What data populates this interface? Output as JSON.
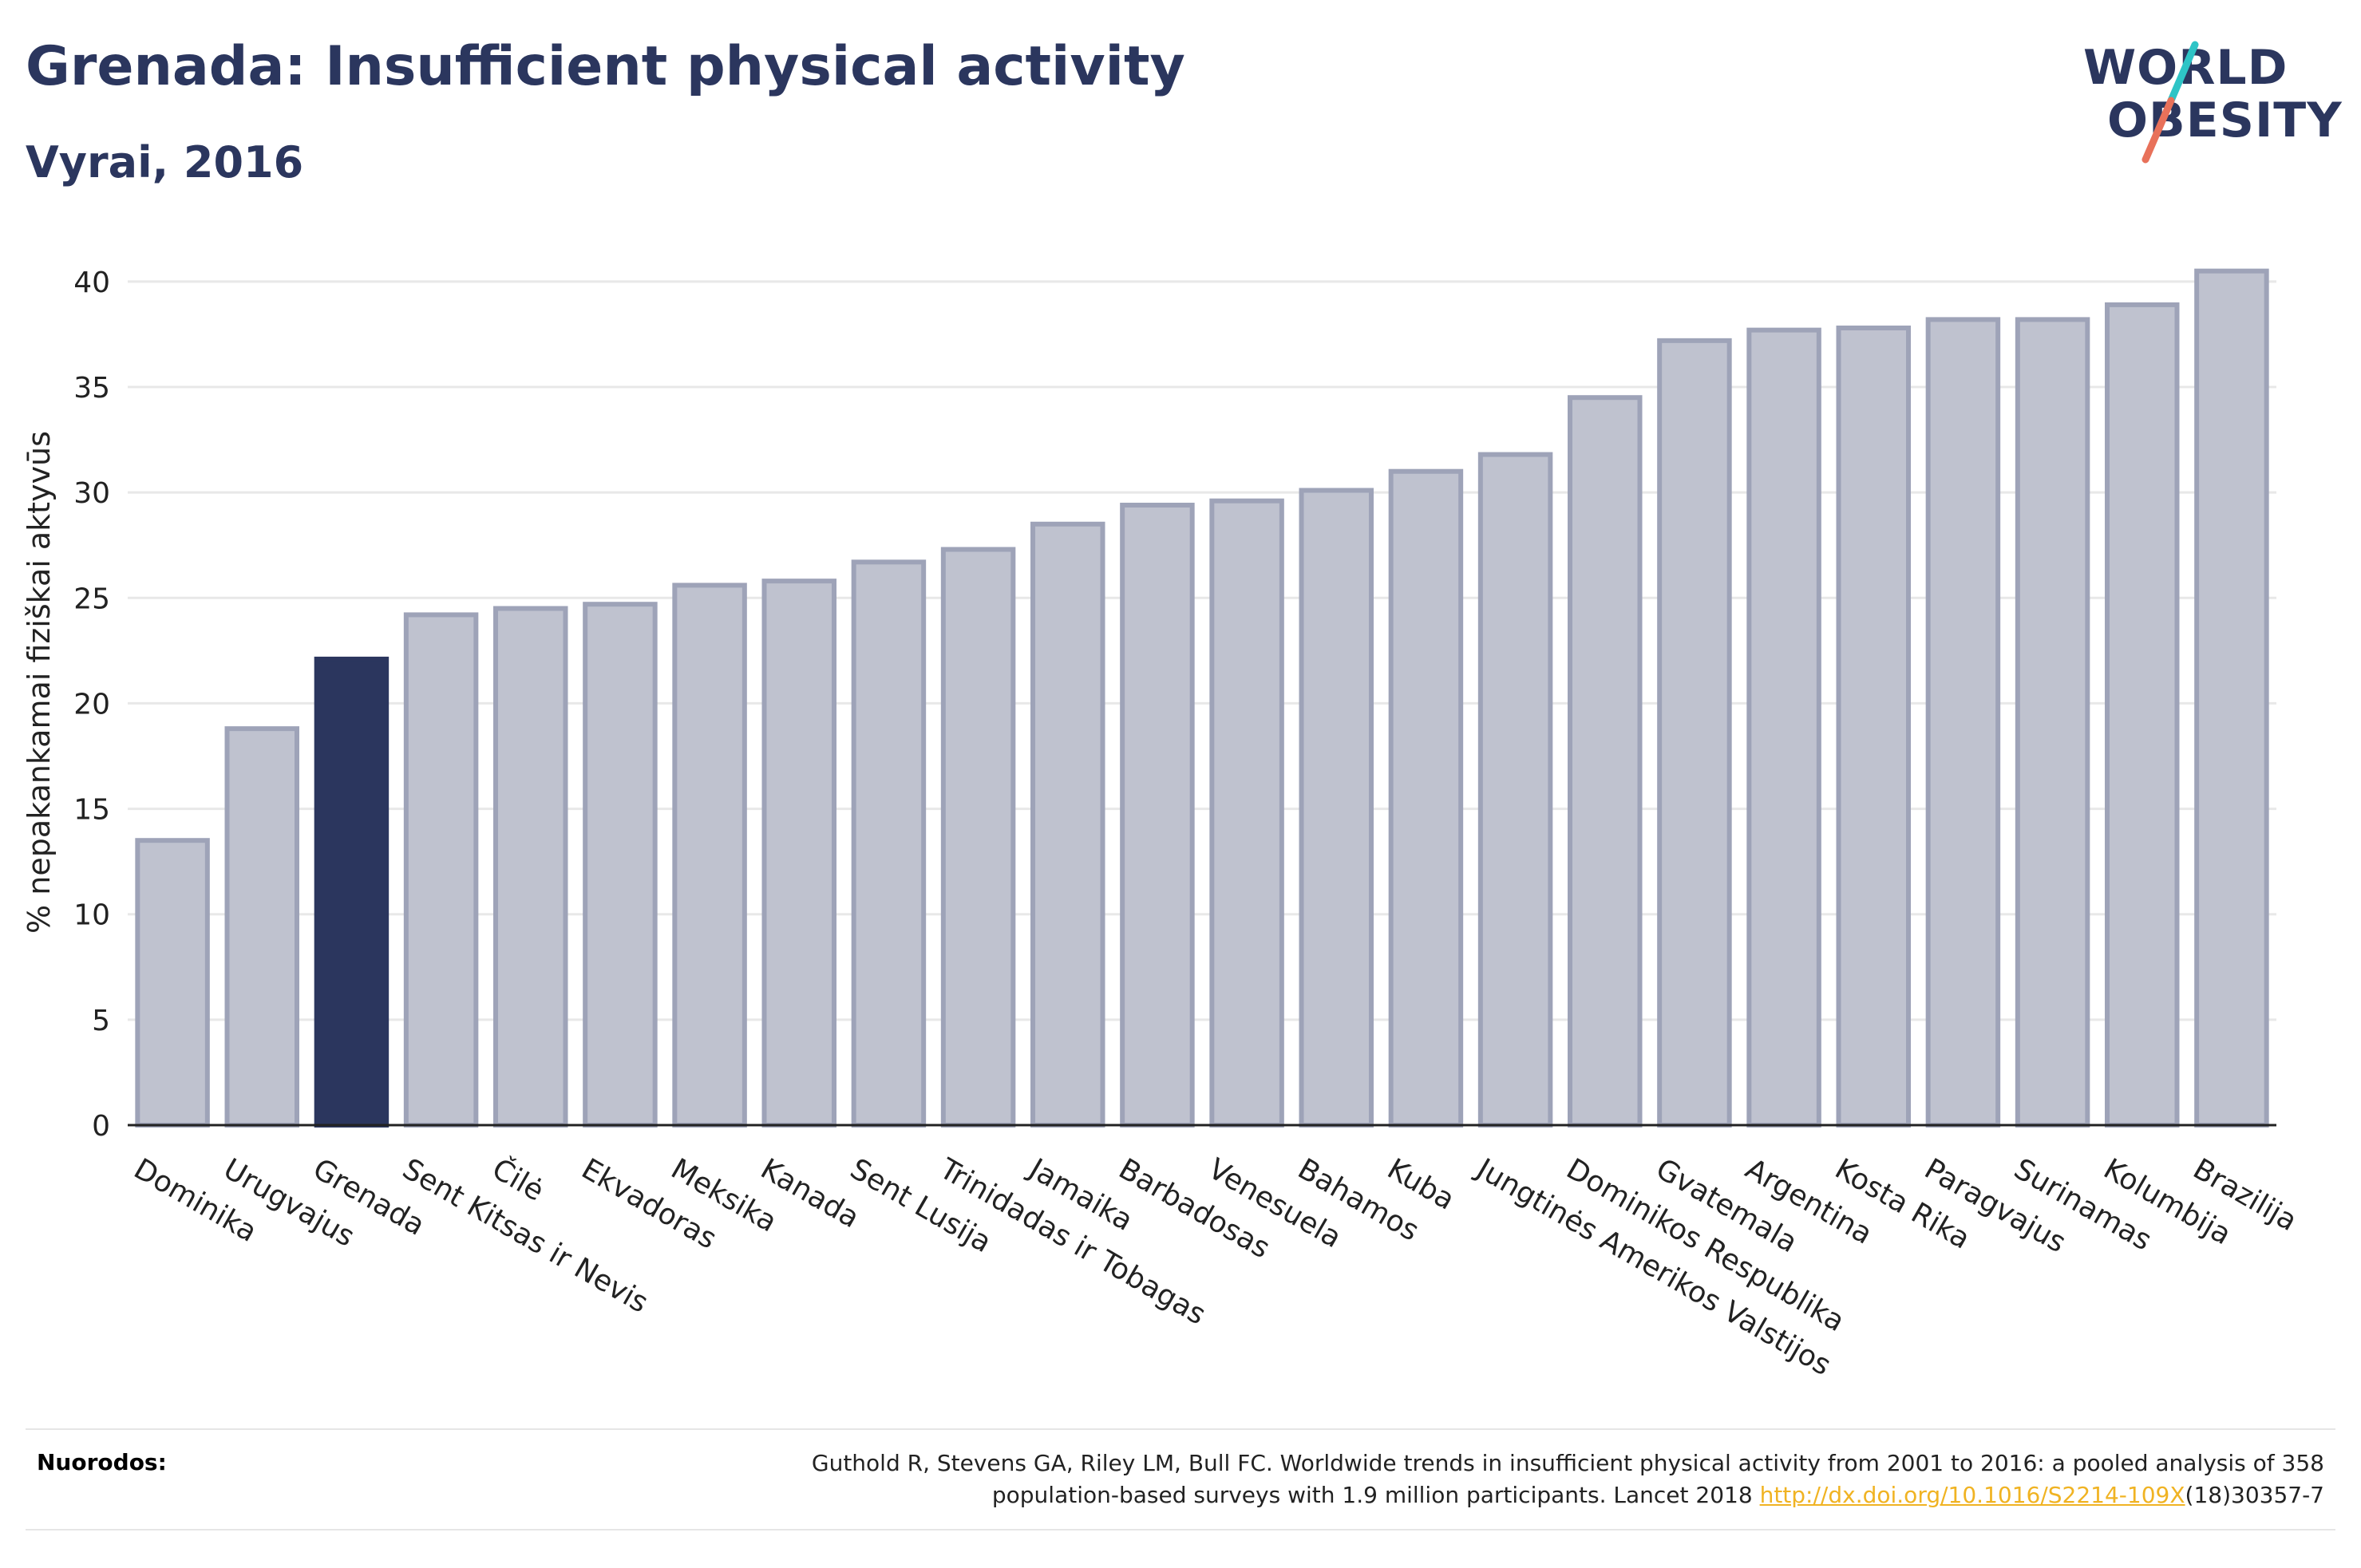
{
  "header": {
    "title": "Grenada: Insufficient physical activity",
    "subtitle": "Vyrai, 2016"
  },
  "logo": {
    "line1": "WORLD",
    "line2": "OBESITY",
    "accent_colors": [
      "#2ec4c6",
      "#e8715a"
    ]
  },
  "colors": {
    "highlight": "#2b365e",
    "bar": "#bfc2cf",
    "bar_edge": "#9ea3b8"
  },
  "chart_data": {
    "type": "bar",
    "title": "Grenada: Insufficient physical activity",
    "subtitle": "Vyrai, 2016",
    "ylabel": "% nepakankamai fiziškai aktyvūs",
    "xlabel": "",
    "ylim": [
      0,
      42
    ],
    "yticks": [
      0,
      5,
      10,
      15,
      20,
      25,
      30,
      35,
      40
    ],
    "grid": true,
    "highlight": "Grenada",
    "categories": [
      "Dominika",
      "Urugvajus",
      "Grenada",
      "Sent Kitsas ir Nevis",
      "Čilė",
      "Ekvadoras",
      "Meksika",
      "Kanada",
      "Sent Lusija",
      "Trinidadas ir Tobagas",
      "Jamaika",
      "Barbadosas",
      "Venesuela",
      "Bahamos",
      "Kuba",
      "Jungtinės Amerikos Valstijos",
      "Dominikos Respublika",
      "Gvatemala",
      "Argentina",
      "Kosta Rika",
      "Paragvajus",
      "Surinamas",
      "Kolumbija",
      "Brazilija"
    ],
    "values": [
      13.5,
      18.8,
      22.1,
      24.2,
      24.5,
      24.7,
      25.6,
      25.8,
      26.7,
      27.3,
      28.5,
      29.4,
      29.6,
      30.1,
      31.0,
      31.8,
      34.5,
      37.2,
      37.7,
      37.8,
      38.2,
      38.2,
      38.9,
      40.5
    ]
  },
  "footer": {
    "label": "Nuorodos:",
    "ref_text_1": "Guthold R, Stevens GA, Riley LM, Bull FC. Worldwide trends in insufficient physical activity from 2001 to 2016: a pooled analysis of 358",
    "ref_text_2": "population-based surveys with 1.9 million participants. Lancet 2018 ",
    "ref_link": "http://dx.doi.org/10.1016/S2214-109X",
    "ref_text_3": "(18)30357-7"
  }
}
